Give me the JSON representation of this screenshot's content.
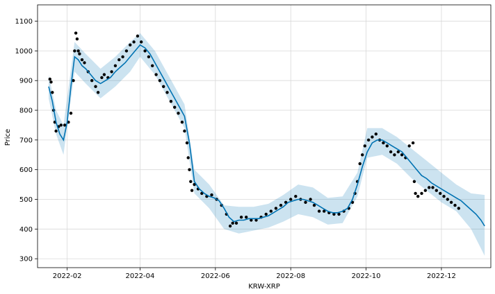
{
  "chart_data": {
    "type": "line",
    "title": "",
    "xlabel": "KRW-XRP",
    "ylabel": "Price",
    "grid": true,
    "x_range": [
      "2022-01-08",
      "2023-01-10"
    ],
    "ylim": [
      270,
      1155
    ],
    "x_ticks": [
      "2022-02",
      "2022-04",
      "2022-06",
      "2022-08",
      "2022-10",
      "2022-12"
    ],
    "x_tick_dates": [
      "2022-02-01",
      "2022-04-01",
      "2022-06-01",
      "2022-08-01",
      "2022-10-01",
      "2022-12-01"
    ],
    "y_ticks": [
      300,
      400,
      500,
      600,
      700,
      800,
      900,
      1000,
      1100
    ],
    "series": [
      {
        "kind": "observed",
        "color": "#000000",
        "x": [
          "2022-01-18",
          "2022-01-19",
          "2022-01-20",
          "2022-01-21",
          "2022-01-22",
          "2022-01-23",
          "2022-01-25",
          "2022-01-27",
          "2022-01-30",
          "2022-02-02",
          "2022-02-04",
          "2022-02-06",
          "2022-02-07",
          "2022-02-08",
          "2022-02-09",
          "2022-02-10",
          "2022-02-11",
          "2022-02-13",
          "2022-02-15",
          "2022-02-18",
          "2022-02-21",
          "2022-02-24",
          "2022-02-26",
          "2022-03-01",
          "2022-03-03",
          "2022-03-06",
          "2022-03-09",
          "2022-03-12",
          "2022-03-15",
          "2022-03-18",
          "2022-03-21",
          "2022-03-24",
          "2022-03-27",
          "2022-03-30",
          "2022-04-02",
          "2022-04-05",
          "2022-04-08",
          "2022-04-11",
          "2022-04-14",
          "2022-04-17",
          "2022-04-20",
          "2022-04-23",
          "2022-04-26",
          "2022-04-29",
          "2022-05-02",
          "2022-05-05",
          "2022-05-07",
          "2022-05-09",
          "2022-05-10",
          "2022-05-11",
          "2022-05-12",
          "2022-05-13",
          "2022-05-15",
          "2022-05-18",
          "2022-05-21",
          "2022-05-25",
          "2022-05-29",
          "2022-06-02",
          "2022-06-06",
          "2022-06-10",
          "2022-06-13",
          "2022-06-15",
          "2022-06-18",
          "2022-06-22",
          "2022-06-26",
          "2022-06-30",
          "2022-07-04",
          "2022-07-08",
          "2022-07-12",
          "2022-07-16",
          "2022-07-20",
          "2022-07-24",
          "2022-07-28",
          "2022-08-01",
          "2022-08-05",
          "2022-08-09",
          "2022-08-13",
          "2022-08-17",
          "2022-08-20",
          "2022-08-24",
          "2022-08-28",
          "2022-09-01",
          "2022-09-05",
          "2022-09-09",
          "2022-09-13",
          "2022-09-17",
          "2022-09-20",
          "2022-09-22",
          "2022-09-24",
          "2022-09-26",
          "2022-09-28",
          "2022-09-30",
          "2022-10-03",
          "2022-10-06",
          "2022-10-09",
          "2022-10-12",
          "2022-10-15",
          "2022-10-18",
          "2022-10-21",
          "2022-10-24",
          "2022-10-27",
          "2022-10-30",
          "2022-11-02",
          "2022-11-05",
          "2022-11-08",
          "2022-11-09",
          "2022-11-10",
          "2022-11-12",
          "2022-11-15",
          "2022-11-18",
          "2022-11-21",
          "2022-11-24",
          "2022-11-27",
          "2022-11-30",
          "2022-12-03",
          "2022-12-06",
          "2022-12-09",
          "2022-12-12",
          "2022-12-15"
        ],
        "y": [
          905,
          895,
          860,
          800,
          760,
          730,
          745,
          750,
          750,
          760,
          790,
          900,
          1000,
          1060,
          1040,
          1000,
          990,
          970,
          960,
          930,
          900,
          880,
          860,
          910,
          920,
          910,
          930,
          950,
          970,
          980,
          1000,
          1020,
          1030,
          1050,
          1030,
          1000,
          980,
          950,
          920,
          900,
          880,
          860,
          830,
          810,
          790,
          760,
          730,
          690,
          640,
          600,
          560,
          530,
          550,
          535,
          520,
          510,
          515,
          500,
          480,
          450,
          410,
          420,
          420,
          440,
          440,
          430,
          430,
          440,
          450,
          460,
          470,
          480,
          490,
          500,
          510,
          500,
          490,
          500,
          480,
          460,
          460,
          455,
          450,
          450,
          460,
          470,
          490,
          520,
          560,
          620,
          650,
          680,
          700,
          710,
          720,
          700,
          690,
          680,
          660,
          650,
          660,
          650,
          640,
          680,
          690,
          560,
          520,
          510,
          520,
          530,
          540,
          540,
          530,
          520,
          510,
          500,
          490,
          480,
          470
        ]
      },
      {
        "kind": "forecast",
        "color": "#0072B2",
        "x": [
          "2022-01-17",
          "2022-01-20",
          "2022-01-23",
          "2022-01-26",
          "2022-01-29",
          "2022-02-01",
          "2022-02-04",
          "2022-02-07",
          "2022-02-10",
          "2022-02-13",
          "2022-02-16",
          "2022-02-20",
          "2022-02-24",
          "2022-02-28",
          "2022-03-04",
          "2022-03-08",
          "2022-03-12",
          "2022-03-16",
          "2022-03-20",
          "2022-03-24",
          "2022-03-28",
          "2022-04-01",
          "2022-04-05",
          "2022-04-09",
          "2022-04-13",
          "2022-04-17",
          "2022-04-21",
          "2022-04-25",
          "2022-04-29",
          "2022-05-03",
          "2022-05-07",
          "2022-05-11",
          "2022-05-15",
          "2022-05-19",
          "2022-05-23",
          "2022-05-27",
          "2022-05-31",
          "2022-06-04",
          "2022-06-08",
          "2022-06-12",
          "2022-06-16",
          "2022-06-20",
          "2022-06-24",
          "2022-06-28",
          "2022-07-02",
          "2022-07-06",
          "2022-07-10",
          "2022-07-14",
          "2022-07-18",
          "2022-07-22",
          "2022-07-26",
          "2022-07-30",
          "2022-08-03",
          "2022-08-07",
          "2022-08-11",
          "2022-08-15",
          "2022-08-19",
          "2022-08-23",
          "2022-08-27",
          "2022-08-31",
          "2022-09-04",
          "2022-09-08",
          "2022-09-12",
          "2022-09-16",
          "2022-09-20",
          "2022-09-24",
          "2022-09-28",
          "2022-10-02",
          "2022-10-06",
          "2022-10-10",
          "2022-10-14",
          "2022-10-18",
          "2022-10-22",
          "2022-10-26",
          "2022-10-30",
          "2022-11-03",
          "2022-11-07",
          "2022-11-11",
          "2022-11-15",
          "2022-11-19",
          "2022-11-23",
          "2022-11-27",
          "2022-12-01",
          "2022-12-05",
          "2022-12-09",
          "2022-12-13",
          "2022-12-17",
          "2022-12-21",
          "2022-12-25",
          "2022-12-29",
          "2023-01-02",
          "2023-01-05"
        ],
        "y": [
          880,
          830,
          760,
          720,
          700,
          760,
          880,
          980,
          970,
          950,
          940,
          920,
          900,
          890,
          900,
          910,
          930,
          945,
          960,
          980,
          1000,
          1020,
          1010,
          990,
          960,
          930,
          900,
          870,
          840,
          810,
          780,
          690,
          560,
          535,
          520,
          510,
          505,
          495,
          470,
          440,
          425,
          430,
          430,
          435,
          435,
          435,
          440,
          445,
          455,
          465,
          475,
          490,
          495,
          500,
          500,
          495,
          490,
          480,
          470,
          460,
          455,
          455,
          460,
          470,
          500,
          550,
          610,
          660,
          690,
          700,
          700,
          690,
          680,
          670,
          660,
          640,
          620,
          600,
          580,
          570,
          555,
          545,
          535,
          525,
          515,
          505,
          495,
          480,
          465,
          450,
          430,
          410
        ]
      },
      {
        "kind": "uncertainty-band",
        "color": "#0072B2",
        "x": [
          "2022-01-17",
          "2022-01-23",
          "2022-01-29",
          "2022-02-07",
          "2022-02-16",
          "2022-02-28",
          "2022-03-12",
          "2022-03-24",
          "2022-04-01",
          "2022-04-13",
          "2022-04-25",
          "2022-05-07",
          "2022-05-15",
          "2022-05-27",
          "2022-06-08",
          "2022-06-20",
          "2022-07-02",
          "2022-07-14",
          "2022-07-26",
          "2022-08-07",
          "2022-08-19",
          "2022-08-31",
          "2022-09-12",
          "2022-09-24",
          "2022-10-02",
          "2022-10-14",
          "2022-10-26",
          "2022-11-07",
          "2022-11-19",
          "2022-12-01",
          "2022-12-13",
          "2022-12-25",
          "2023-01-05"
        ],
        "lower": [
          840,
          720,
          650,
          930,
          890,
          840,
          880,
          930,
          980,
          920,
          830,
          740,
          520,
          470,
          400,
          385,
          395,
          405,
          425,
          450,
          440,
          415,
          420,
          510,
          640,
          650,
          620,
          570,
          530,
          490,
          460,
          400,
          310
        ],
        "upper": [
          920,
          800,
          750,
          1030,
          990,
          940,
          980,
          1030,
          1060,
          1000,
          910,
          820,
          600,
          550,
          480,
          475,
          475,
          485,
          515,
          550,
          540,
          505,
          510,
          590,
          740,
          740,
          710,
          670,
          630,
          590,
          550,
          520,
          515
        ]
      }
    ]
  }
}
